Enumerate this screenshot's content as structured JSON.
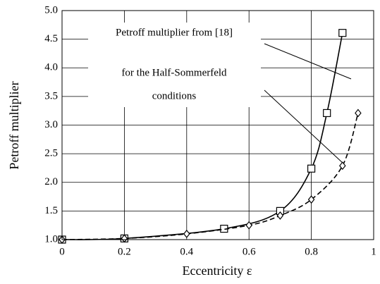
{
  "chart_data": {
    "type": "line",
    "xlabel": "Eccentricity ε",
    "ylabel": "Petroff multiplier",
    "annotations": [
      "Petroff multiplier from [18]",
      "for the Half-Sommerfeld",
      "conditions"
    ],
    "xlim": [
      0,
      1
    ],
    "xticks": [
      0,
      0.2,
      0.4,
      0.6,
      0.8,
      1
    ],
    "ylim": [
      1,
      5
    ],
    "yticks": [
      {
        "value": 1,
        "label": "1.0"
      },
      1.5,
      {
        "value": 2,
        "label": "2.0"
      },
      2.5,
      {
        "value": 3,
        "label": "3.0"
      },
      3.5,
      {
        "value": 4,
        "label": "4.0"
      },
      4.5,
      {
        "value": 5,
        "label": "5.0"
      }
    ],
    "grid": true,
    "series": [
      {
        "color": "#000000",
        "marker": "square",
        "dash": false,
        "x": [
          0,
          0.2,
          0.52,
          0.7,
          0.8,
          0.85,
          0.9
        ],
        "values": [
          1.0,
          1.02,
          1.19,
          1.5,
          2.24,
          3.21,
          4.61
        ]
      },
      {
        "color": "#000000",
        "marker": "diamond",
        "dash": true,
        "x": [
          0,
          0.2,
          0.4,
          0.6,
          0.7,
          0.8,
          0.9,
          0.95
        ],
        "values": [
          1.0,
          1.02,
          1.1,
          1.25,
          1.42,
          1.7,
          2.29,
          3.21
        ]
      }
    ]
  }
}
